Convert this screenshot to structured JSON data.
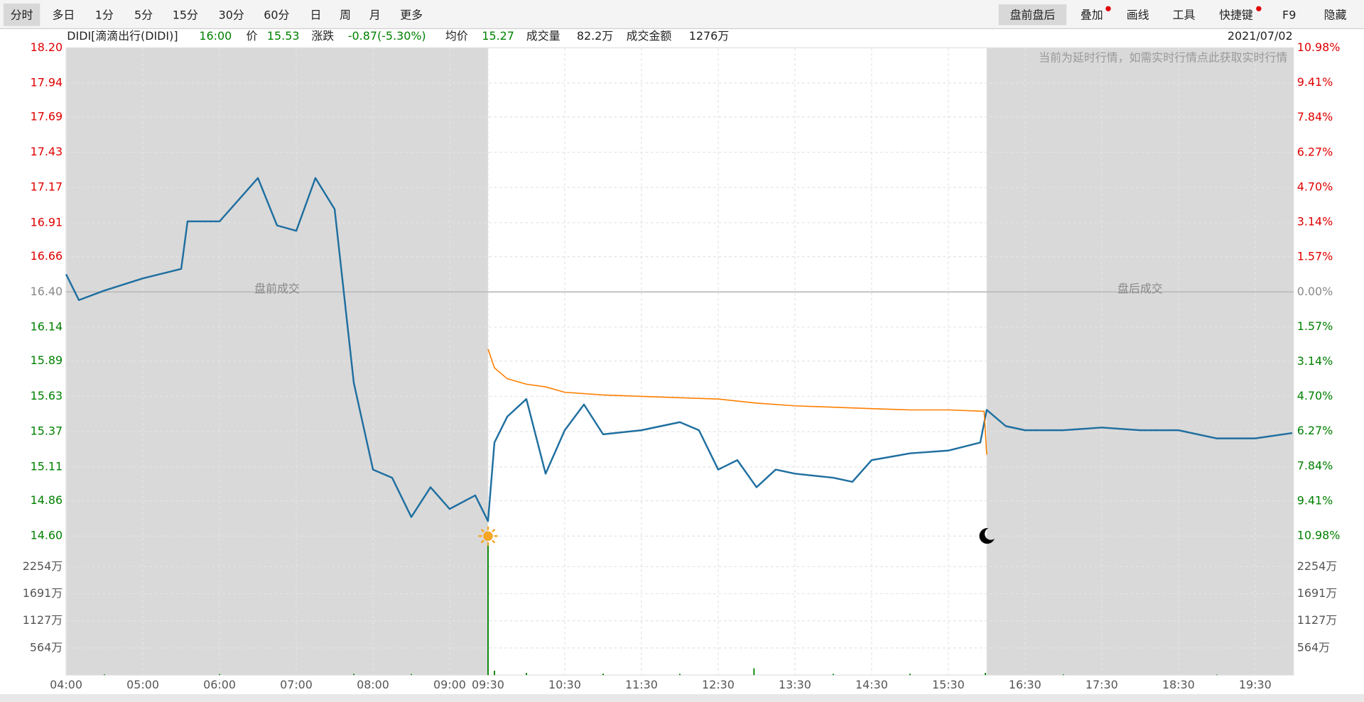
{
  "toolbar": {
    "left": [
      "分时",
      "多日",
      "1分",
      "5分",
      "15分",
      "30分",
      "60分",
      "日",
      "周",
      "月",
      "更多"
    ],
    "right": [
      "盘前盘后",
      "叠加",
      "画线",
      "工具",
      "快捷键",
      "F9",
      "隐藏"
    ]
  },
  "info": {
    "symbol": "DIDI[滴滴出行(DIDI)]",
    "time": "16:00",
    "price_label": "价",
    "price": "15.53",
    "change_label": "涨跌",
    "change": "-0.87(-5.30%)",
    "avg_label": "均价",
    "avg": "15.27",
    "volume_label": "成交量",
    "volume": "82.2万",
    "amount_label": "成交金额",
    "amount": "1276万",
    "date": "2021/07/02"
  },
  "chart_data": {
    "type": "line",
    "annotations": {
      "premarket": "盘前成交",
      "afterhours": "盘后成交",
      "delay_note": "当前为延时行情，如需实时行情点此获取实时行情"
    },
    "xlim": [
      "04:00",
      "20:00"
    ],
    "xticks": [
      "04:00",
      "05:00",
      "06:00",
      "07:00",
      "08:00",
      "09:00",
      "09:30",
      "10:30",
      "11:30",
      "12:30",
      "13:30",
      "14:30",
      "15:30",
      "16:30",
      "17:30",
      "18:30",
      "19:30"
    ],
    "ylim": [
      14.6,
      18.2
    ],
    "yticks": [
      {
        "value": 18.2,
        "label": "18.20"
      },
      {
        "value": 17.94,
        "label": "17.94"
      },
      {
        "value": 17.69,
        "label": "17.69"
      },
      {
        "value": 17.43,
        "label": "17.43"
      },
      {
        "value": 17.17,
        "label": "17.17"
      },
      {
        "value": 16.91,
        "label": "16.91"
      },
      {
        "value": 16.66,
        "label": "16.66"
      },
      {
        "value": 16.4,
        "label": "16.40"
      },
      {
        "value": 16.14,
        "label": "16.14"
      },
      {
        "value": 15.89,
        "label": "15.89"
      },
      {
        "value": 15.63,
        "label": "15.63"
      },
      {
        "value": 15.37,
        "label": "15.37"
      },
      {
        "value": 15.11,
        "label": "15.11"
      },
      {
        "value": 14.86,
        "label": "14.86"
      },
      {
        "value": 14.6,
        "label": "14.60"
      }
    ],
    "y2lim": [
      -10.98,
      10.98
    ],
    "y2ticks": [
      {
        "value": 10.98,
        "label": "10.98%"
      },
      {
        "value": 9.41,
        "label": "9.41%"
      },
      {
        "value": 7.84,
        "label": "7.84%"
      },
      {
        "value": 6.27,
        "label": "6.27%"
      },
      {
        "value": 4.7,
        "label": "4.70%"
      },
      {
        "value": 3.14,
        "label": "3.14%"
      },
      {
        "value": 1.57,
        "label": "1.57%"
      },
      {
        "value": 0,
        "label": "0.00%"
      },
      {
        "value": -1.57,
        "label": "1.57%"
      },
      {
        "value": -3.14,
        "label": "3.14%"
      },
      {
        "value": -4.7,
        "label": "4.70%"
      },
      {
        "value": -6.27,
        "label": "6.27%"
      },
      {
        "value": -7.84,
        "label": "7.84%"
      },
      {
        "value": -9.41,
        "label": "9.41%"
      },
      {
        "value": -10.98,
        "label": "10.98%"
      }
    ],
    "grid": true,
    "series": [
      {
        "color": "#1f6fa0",
        "x": [
          "04:00",
          "04:10",
          "04:30",
          "05:00",
          "05:30",
          "05:35",
          "06:00",
          "06:30",
          "06:45",
          "07:00",
          "07:15",
          "07:30",
          "07:45",
          "08:00",
          "08:15",
          "08:30",
          "08:45",
          "09:00",
          "09:20",
          "09:30",
          "09:35",
          "09:45",
          "10:00",
          "10:15",
          "10:30",
          "10:45",
          "11:00",
          "11:30",
          "12:00",
          "12:15",
          "12:30",
          "12:45",
          "13:00",
          "13:15",
          "13:30",
          "14:00",
          "14:15",
          "14:30",
          "15:00",
          "15:30",
          "15:55",
          "16:00",
          "16:15",
          "16:30",
          "17:00",
          "17:30",
          "18:00",
          "18:30",
          "19:00",
          "19:30",
          "19:59"
        ],
        "values": [
          16.53,
          16.34,
          16.41,
          16.5,
          16.57,
          16.92,
          16.92,
          17.24,
          16.89,
          16.85,
          17.24,
          17.01,
          15.73,
          15.09,
          15.03,
          14.74,
          14.96,
          14.8,
          14.9,
          14.71,
          15.29,
          15.48,
          15.61,
          15.06,
          15.38,
          15.57,
          15.35,
          15.38,
          15.44,
          15.38,
          15.09,
          15.16,
          14.96,
          15.09,
          15.06,
          15.03,
          15.0,
          15.16,
          15.21,
          15.23,
          15.29,
          15.53,
          15.41,
          15.38,
          15.38,
          15.4,
          15.38,
          15.38,
          15.32,
          15.32,
          15.36
        ]
      },
      {
        "color": "#ff7f00",
        "x": [
          "09:30",
          "09:35",
          "09:45",
          "10:00",
          "10:15",
          "10:30",
          "11:00",
          "11:30",
          "12:00",
          "12:30",
          "13:00",
          "13:30",
          "14:00",
          "14:30",
          "15:00",
          "15:30",
          "15:58",
          "16:00"
        ],
        "values": [
          15.98,
          15.84,
          15.76,
          15.72,
          15.7,
          15.66,
          15.64,
          15.63,
          15.62,
          15.61,
          15.58,
          15.56,
          15.55,
          15.54,
          15.53,
          15.53,
          15.52,
          15.2
        ]
      }
    ],
    "volume": {
      "color": "#008000",
      "ylim": [
        0,
        2817
      ],
      "yticks": [
        {
          "value": 2254,
          "label": "2254万"
        },
        {
          "value": 1691,
          "label": "1691万"
        },
        {
          "value": 1127,
          "label": "1127万"
        },
        {
          "value": 564,
          "label": "564万"
        }
      ],
      "x": [
        "04:30",
        "06:00",
        "07:45",
        "08:30",
        "09:30",
        "09:35",
        "10:00",
        "11:00",
        "12:00",
        "12:58",
        "14:00",
        "15:00",
        "15:59",
        "17:00",
        "19:00"
      ],
      "values": [
        15,
        20,
        25,
        20,
        2700,
        90,
        45,
        30,
        25,
        140,
        25,
        30,
        45,
        15,
        10
      ]
    }
  }
}
